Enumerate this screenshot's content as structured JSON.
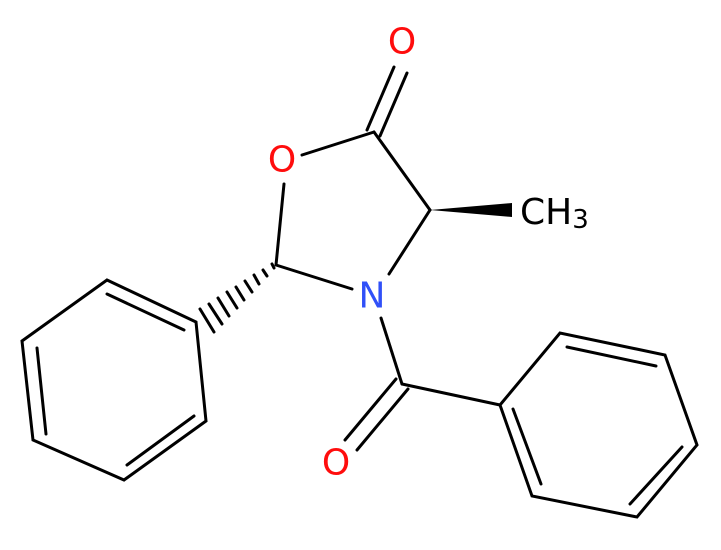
{
  "atoms": [
    {
      "label": "O"
    },
    {
      "label": "O"
    },
    {
      "label": "N"
    },
    {
      "label": "O"
    }
  ],
  "methyl": {
    "main": "CH",
    "sub": "3"
  }
}
